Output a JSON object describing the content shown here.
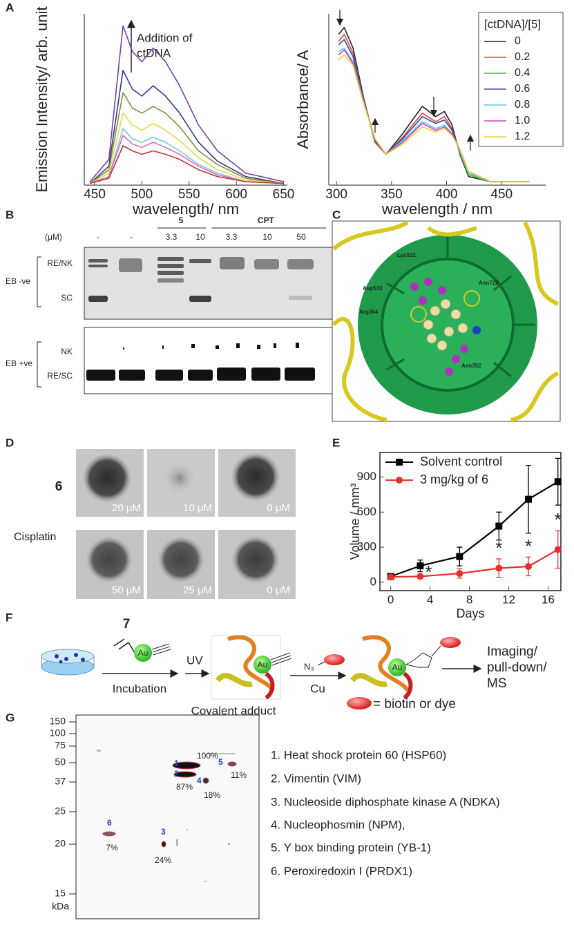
{
  "panel_labels": [
    "A",
    "B",
    "C",
    "D",
    "E",
    "F",
    "G"
  ],
  "chart_data": [
    {
      "type": "line",
      "x_label": "wavelength/ nm",
      "y_label": "Emission Intensity/ arb. unit",
      "annotation": [
        "Addition of",
        "ctDNA"
      ],
      "x": [
        445,
        465,
        480,
        490,
        500,
        512,
        525,
        540,
        560,
        580,
        610,
        650
      ],
      "xlim": [
        439,
        654
      ],
      "ylim": [
        0,
        100
      ],
      "xticks": [
        450,
        500,
        550,
        600,
        650
      ],
      "series": [
        {
          "color": "#7a3fa0",
          "values": [
            2,
            15,
            93,
            78,
            72,
            80,
            72,
            58,
            35,
            20,
            7,
            2
          ]
        },
        {
          "color": "#2b3a8c",
          "values": [
            1,
            11,
            67,
            56,
            52,
            58,
            52,
            42,
            25,
            14,
            5,
            1
          ]
        },
        {
          "color": "#8a8a3a",
          "values": [
            1,
            9,
            54,
            45,
            42,
            46,
            42,
            34,
            20,
            12,
            4,
            1
          ]
        },
        {
          "color": "#e6d84a",
          "values": [
            1,
            7,
            42,
            35,
            32,
            36,
            32,
            26,
            16,
            9,
            3,
            1
          ]
        },
        {
          "color": "#7ac8e0",
          "values": [
            1,
            5,
            33,
            27,
            25,
            28,
            25,
            20,
            12,
            7,
            2,
            1
          ]
        },
        {
          "color": "#d070b0",
          "values": [
            1,
            5,
            29,
            24,
            22,
            25,
            22,
            18,
            11,
            6,
            2,
            1
          ]
        },
        {
          "color": "#c03030",
          "values": [
            1,
            4,
            23,
            20,
            18,
            20,
            18,
            15,
            9,
            5,
            2,
            1
          ]
        }
      ]
    },
    {
      "type": "line",
      "x_label": "wavelength / nm",
      "y_label": "Absorbance/ A",
      "legend_title": "[ctDNA]/[5]",
      "x": [
        302,
        307,
        315,
        325,
        335,
        345,
        360,
        378,
        390,
        398,
        405,
        412,
        420,
        440,
        475
      ],
      "xlim": [
        293,
        490
      ],
      "ylim": [
        0,
        100
      ],
      "xticks": [
        300,
        350,
        400,
        450
      ],
      "series": [
        {
          "name": "0",
          "color": "#222222",
          "values": [
            88,
            92,
            80,
            50,
            25,
            18,
            30,
            46,
            40,
            43,
            35,
            18,
            5,
            2,
            2
          ]
        },
        {
          "name": "0.2",
          "color": "#e0403a",
          "values": [
            84,
            88,
            77,
            49,
            25,
            18,
            28,
            42,
            37,
            40,
            33,
            19,
            6,
            2,
            2
          ]
        },
        {
          "name": "0.4",
          "color": "#4cb848",
          "values": [
            82,
            85,
            75,
            48,
            26,
            18,
            27,
            40,
            36,
            38,
            32,
            19,
            6,
            2,
            2
          ]
        },
        {
          "name": "0.6",
          "color": "#3a4bb0",
          "values": [
            82,
            85,
            75,
            49,
            26,
            18,
            27,
            40,
            36,
            38,
            32,
            20,
            7,
            2,
            2
          ]
        },
        {
          "name": "0.8",
          "color": "#56c8e8",
          "values": [
            78,
            80,
            72,
            48,
            27,
            18,
            26,
            37,
            33,
            35,
            30,
            20,
            7,
            2,
            2
          ]
        },
        {
          "name": "1.0",
          "color": "#d040c0",
          "values": [
            76,
            79,
            71,
            48,
            27,
            18,
            25,
            36,
            32,
            34,
            30,
            21,
            8,
            2,
            2
          ]
        },
        {
          "name": "1.2",
          "color": "#e8d030",
          "values": [
            73,
            76,
            70,
            47,
            27,
            18,
            24,
            34,
            31,
            33,
            29,
            21,
            8,
            2,
            2
          ]
        }
      ]
    },
    {
      "type": "line",
      "x_label": "Days",
      "y_label": "Volume / mm³",
      "box": true,
      "x": [
        0,
        3,
        7,
        11,
        14,
        17
      ],
      "xlim": [
        -1.1,
        17.3
      ],
      "ylim": [
        -72,
        1110
      ],
      "xticks": [
        0,
        4,
        8,
        12,
        16
      ],
      "yticks": [
        0,
        300,
        600,
        900
      ],
      "series": [
        {
          "name": "Solvent control",
          "color": "#000000",
          "marker": "square",
          "values": [
            50,
            140,
            220,
            480,
            710,
            860
          ],
          "errors": [
            10,
            50,
            80,
            120,
            290,
            200
          ]
        },
        {
          "name": "3 mg/kg of 6",
          "color": "#e8302a",
          "marker": "circle",
          "values": [
            45,
            50,
            75,
            120,
            135,
            280
          ],
          "errors": [
            10,
            15,
            40,
            80,
            80,
            160
          ]
        }
      ],
      "annotations": [
        {
          "text": "*",
          "x": 3
        },
        {
          "text": "*",
          "x": 11
        },
        {
          "text": "*",
          "x": 14
        },
        {
          "text": "*",
          "x": 17
        }
      ]
    }
  ],
  "gel_b": {
    "compound_headers": [
      "5",
      "CPT"
    ],
    "unit": "(μM)",
    "lanes": [
      "-",
      "-",
      "3.3",
      "10",
      "3.3",
      "10",
      "50"
    ],
    "top_gel": {
      "group": "EB -ve",
      "bands": [
        "RE/NK",
        "SC"
      ]
    },
    "bottom_gel": {
      "group": "EB +ve",
      "bands": [
        "NK",
        "RE/SC"
      ]
    }
  },
  "structure_c": {
    "residues": [
      "Lys532",
      "Asn722",
      "Asp533",
      "Arg364",
      "Asn352"
    ]
  },
  "spheroids_d": {
    "rows": [
      {
        "compound": "6",
        "concentrations": [
          "20 μM",
          "10 μM",
          "0 μM"
        ]
      },
      {
        "compound": "Cisplatin",
        "concentrations": [
          "50 μM",
          "25 μM",
          "0 μM"
        ]
      }
    ]
  },
  "scheme_f": {
    "compound": "7",
    "metal": "Au",
    "steps": [
      "Incubation",
      "UV",
      "Cu"
    ],
    "azide": "N₃",
    "adduct": "Covalent adduct",
    "outcome": [
      "Imaging/",
      "pull-down/",
      "MS"
    ],
    "tag_legend": "= biotin or dye"
  },
  "gel_g": {
    "mw_ticks": [
      "150",
      "100",
      "75",
      "50",
      "37",
      "25",
      "20",
      "15"
    ],
    "mw_unit": "kDa",
    "spots": [
      {
        "id": "1",
        "percent": "100%"
      },
      {
        "id": "2",
        "percent": "87%"
      },
      {
        "id": "3",
        "percent": "24%"
      },
      {
        "id": "4",
        "percent": "18%"
      },
      {
        "id": "5",
        "percent": "11%"
      },
      {
        "id": "6",
        "percent": "7%"
      }
    ],
    "proteins": [
      "1. Heat shock protein 60 (HSP60)",
      "2. Vimentin (VIM)",
      "3. Nucleoside diphosphate kinase A (NDKA)",
      "4. Nucleophosmin (NPM),",
      "5. Y box binding protein (YB-1)",
      "6. Peroxiredoxin I (PRDX1)"
    ]
  }
}
